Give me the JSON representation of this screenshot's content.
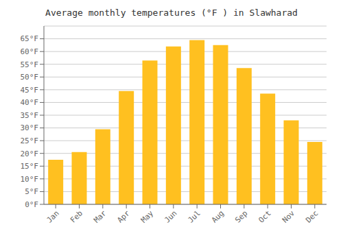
{
  "chart_data": {
    "type": "bar",
    "title": "Average monthly temperatures (°F ) in Slawharad",
    "categories": [
      "Jan",
      "Feb",
      "Mar",
      "Apr",
      "May",
      "Jun",
      "Jul",
      "Aug",
      "Sep",
      "Oct",
      "Nov",
      "Dec"
    ],
    "values": [
      17.5,
      20.5,
      29.5,
      44.5,
      56.5,
      62.0,
      64.5,
      62.5,
      53.5,
      43.5,
      33.0,
      24.5
    ],
    "color": "#FFC020",
    "ylim": [
      0,
      70
    ],
    "yticks": [
      {
        "value": 0,
        "label": "0°F"
      },
      {
        "value": 5,
        "label": "5°F"
      },
      {
        "value": 10,
        "label": "10°F"
      },
      {
        "value": 15,
        "label": "15°F"
      },
      {
        "value": 20,
        "label": "20°F"
      },
      {
        "value": 25,
        "label": "25°F"
      },
      {
        "value": 30,
        "label": "30°F"
      },
      {
        "value": 35,
        "label": "35°F"
      },
      {
        "value": 40,
        "label": "40°F"
      },
      {
        "value": 45,
        "label": "45°F"
      },
      {
        "value": 50,
        "label": "50°F"
      },
      {
        "value": 55,
        "label": "55°F"
      },
      {
        "value": 60,
        "label": "60°F"
      },
      {
        "value": 65,
        "label": "65°F"
      }
    ],
    "grid": true
  }
}
